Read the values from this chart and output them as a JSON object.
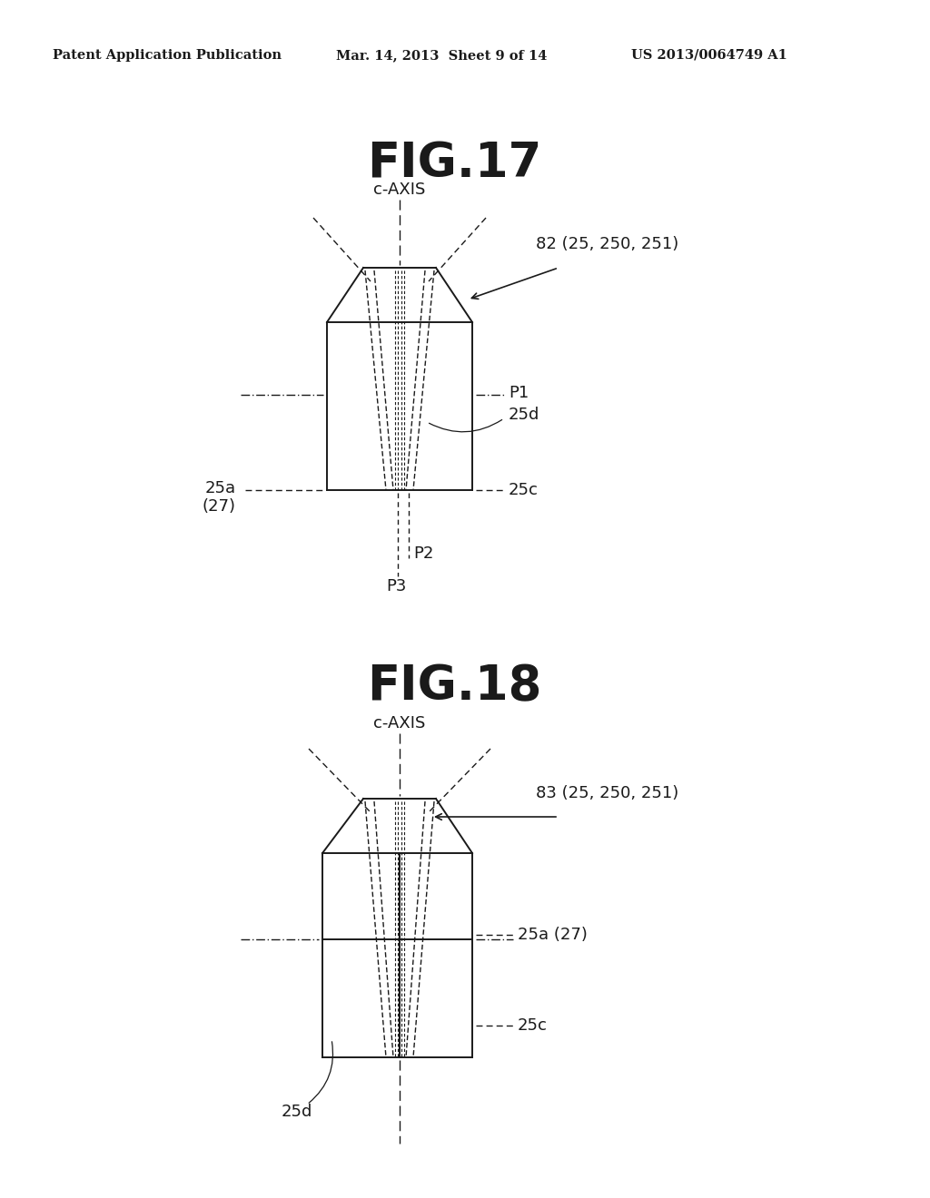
{
  "background_color": "#ffffff",
  "text_color": "#1a1a1a",
  "header_left": "Patent Application Publication",
  "header_center": "Mar. 14, 2013  Sheet 9 of 14",
  "header_right": "US 2013/0064749 A1",
  "fig17_title": "FIG.17",
  "fig18_title": "FIG.18"
}
